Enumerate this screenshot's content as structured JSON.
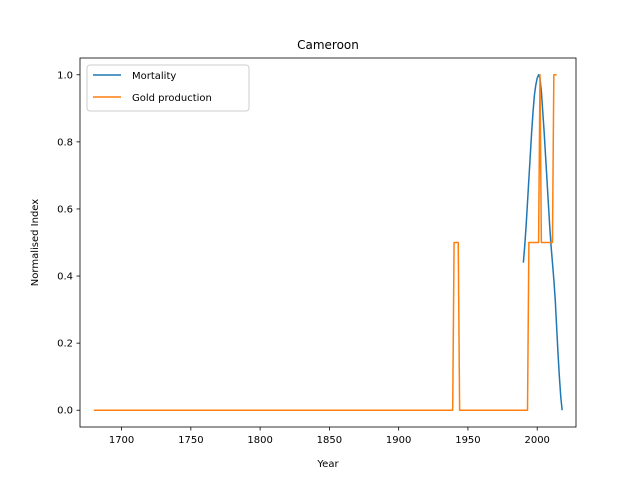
{
  "chart_data": {
    "type": "line",
    "title": "Cameroon",
    "xlabel": "Year",
    "ylabel": "Normalised Index",
    "xlim": [
      1670,
      2028
    ],
    "ylim": [
      -0.05,
      1.05
    ],
    "x_ticks": [
      1700,
      1750,
      1800,
      1850,
      1900,
      1950,
      2000
    ],
    "y_ticks": [
      0.0,
      0.2,
      0.4,
      0.6,
      0.8,
      1.0
    ],
    "grid": false,
    "legend_position": "top-left",
    "series": [
      {
        "name": "Mortality",
        "color": "#1f77b4",
        "points": [
          [
            1990,
            0.44
          ],
          [
            1991,
            0.49
          ],
          [
            1992,
            0.55
          ],
          [
            1993,
            0.62
          ],
          [
            1994,
            0.69
          ],
          [
            1995,
            0.76
          ],
          [
            1996,
            0.83
          ],
          [
            1997,
            0.89
          ],
          [
            1998,
            0.94
          ],
          [
            1999,
            0.97
          ],
          [
            2000,
            0.99
          ],
          [
            2001,
            1.0
          ],
          [
            2002,
            0.99
          ],
          [
            2003,
            0.95
          ],
          [
            2004,
            0.89
          ],
          [
            2005,
            0.83
          ],
          [
            2006,
            0.76
          ],
          [
            2007,
            0.69
          ],
          [
            2008,
            0.62
          ],
          [
            2009,
            0.55
          ],
          [
            2010,
            0.49
          ],
          [
            2011,
            0.44
          ],
          [
            2012,
            0.39
          ],
          [
            2013,
            0.33
          ],
          [
            2014,
            0.25
          ],
          [
            2015,
            0.17
          ],
          [
            2016,
            0.1
          ],
          [
            2017,
            0.04
          ],
          [
            2018,
            0.0
          ]
        ]
      },
      {
        "name": "Gold production",
        "color": "#ff7f0e",
        "points": [
          [
            1680,
            0.0
          ],
          [
            1939,
            0.0
          ],
          [
            1940,
            0.5
          ],
          [
            1943,
            0.5
          ],
          [
            1944,
            0.0
          ],
          [
            1993,
            0.0
          ],
          [
            1994,
            0.5
          ],
          [
            2001,
            0.5
          ],
          [
            2002,
            1.0
          ],
          [
            2003,
            0.5
          ],
          [
            2011,
            0.5
          ],
          [
            2012,
            1.0
          ],
          [
            2014,
            1.0
          ]
        ]
      }
    ]
  }
}
